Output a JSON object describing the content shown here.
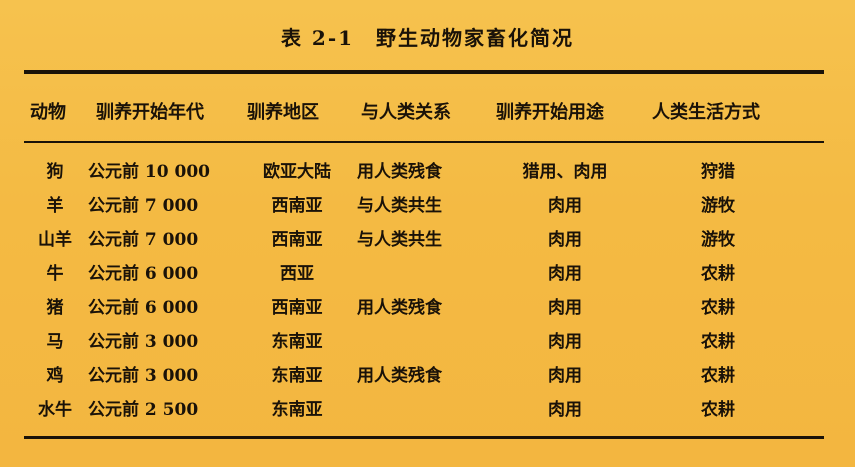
{
  "title": "表 2-1　野生动物家畜化简况",
  "headers": [
    "动物",
    "驯养开始年代",
    "驯养地区",
    "与人类关系",
    "驯养开始用途",
    "人类生活方式"
  ],
  "rows": [
    {
      "animal": "狗",
      "era": "公元前 10 000",
      "region": "欧亚大陆",
      "relation": "用人类残食",
      "use": "猎用、肉用",
      "lifestyle": "狩猎"
    },
    {
      "animal": "羊",
      "era": "公元前 7 000",
      "region": "西南亚",
      "relation": "与人类共生",
      "use": "肉用",
      "lifestyle": "游牧"
    },
    {
      "animal": "山羊",
      "era": "公元前 7 000",
      "region": "西南亚",
      "relation": "与人类共生",
      "use": "肉用",
      "lifestyle": "游牧"
    },
    {
      "animal": "牛",
      "era": "公元前 6 000",
      "region": "西亚",
      "relation": "",
      "use": "肉用",
      "lifestyle": "农耕"
    },
    {
      "animal": "猪",
      "era": "公元前 6 000",
      "region": "西南亚",
      "relation": "用人类残食",
      "use": "肉用",
      "lifestyle": "农耕"
    },
    {
      "animal": "马",
      "era": "公元前 3 000",
      "region": "东南亚",
      "relation": "",
      "use": "肉用",
      "lifestyle": "农耕"
    },
    {
      "animal": "鸡",
      "era": "公元前 3 000",
      "region": "东南亚",
      "relation": "用人类残食",
      "use": "肉用",
      "lifestyle": "农耕"
    },
    {
      "animal": "水牛",
      "era": "公元前 2 500",
      "region": "东南亚",
      "relation": "",
      "use": "肉用",
      "lifestyle": "农耕"
    }
  ]
}
